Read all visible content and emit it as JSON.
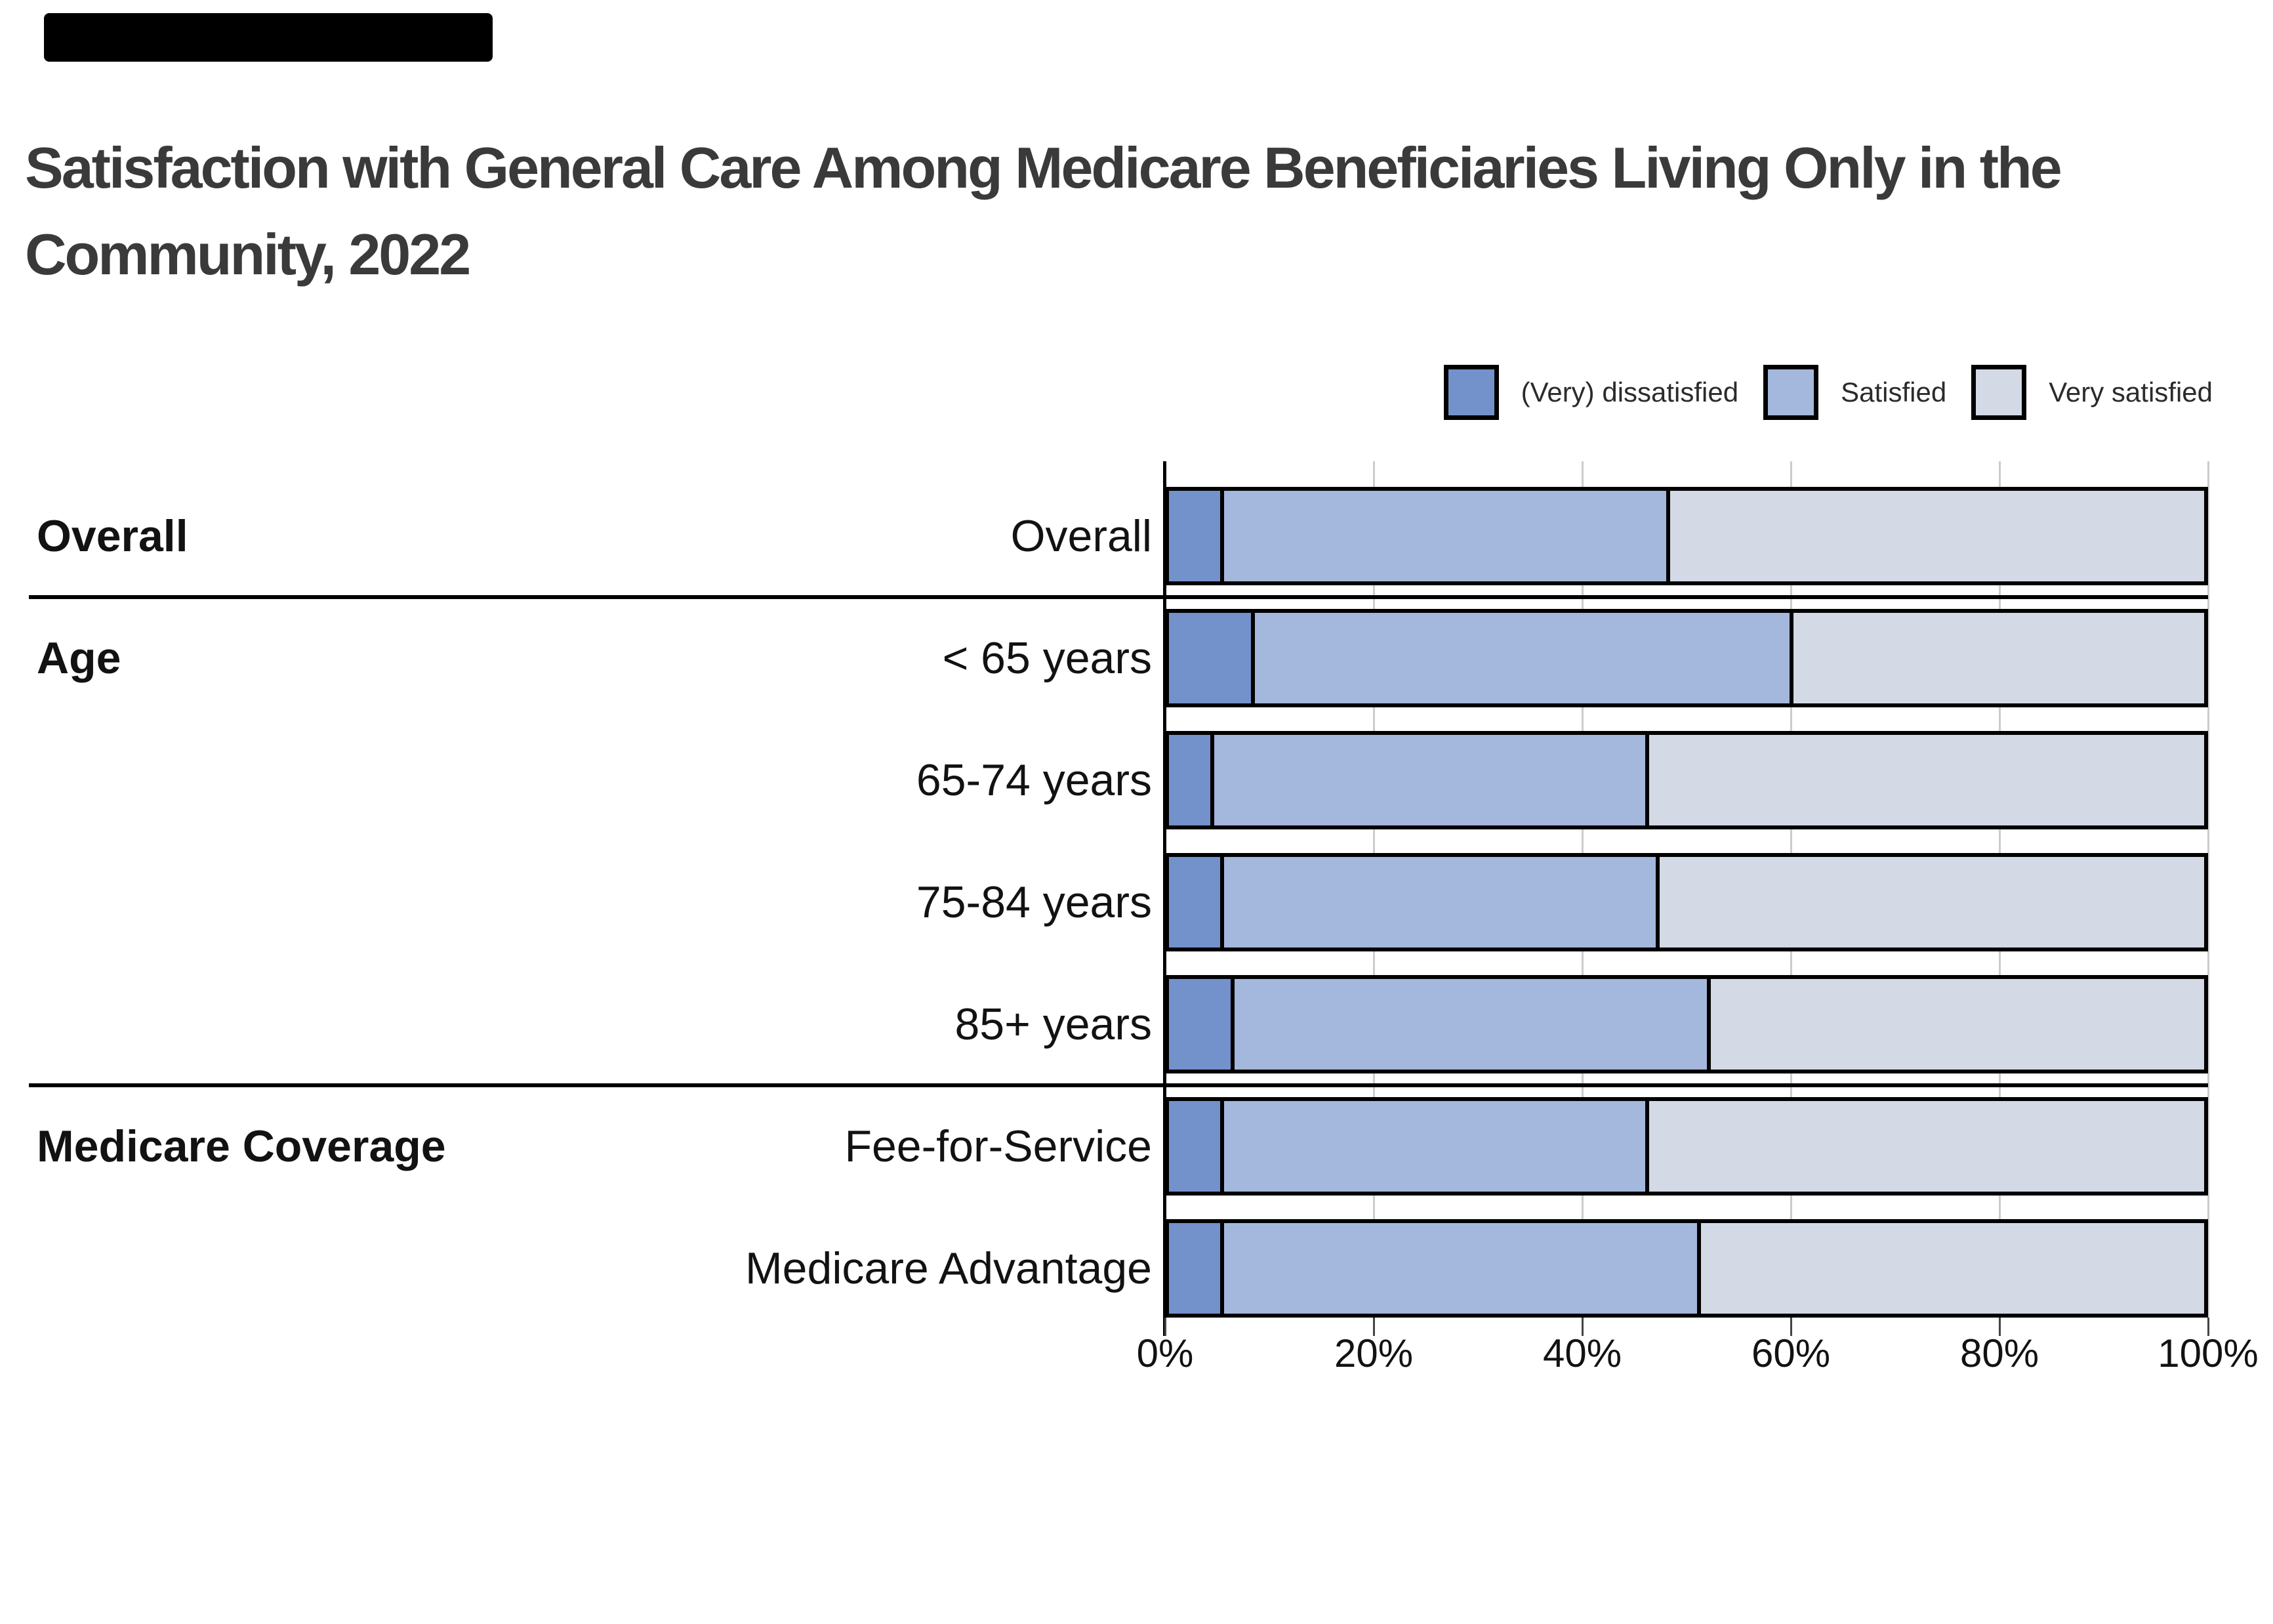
{
  "banner": {
    "color": "#000000"
  },
  "title_lines": [
    "Satisfaction with General Care Among Medicare Beneficiaries Living Only in the",
    "Community, 2022"
  ],
  "legend": {
    "items": [
      {
        "label": "(Very) dissatisfied",
        "color": "#7392CB"
      },
      {
        "label": "Satisfied",
        "color": "#A4B7DC"
      },
      {
        "label": "Very satisfied",
        "color": "#D3D9E5"
      }
    ]
  },
  "chart_data": {
    "type": "bar",
    "orientation": "horizontal",
    "stacked": true,
    "title": "Satisfaction with General Care Among Medicare Beneficiaries Living Only in the Community, 2022",
    "categories": [
      "Overall",
      "< 65 years",
      "65-74 years",
      "75-84 years",
      "85+ years",
      "Fee-for-Service",
      "Medicare Advantage"
    ],
    "row_groups": [
      {
        "label": "Overall",
        "first_row": 0
      },
      {
        "label": "Age",
        "first_row": 1
      },
      {
        "label": "Medicare Coverage",
        "first_row": 5
      }
    ],
    "separators_after_rows": [
      0,
      4
    ],
    "series": [
      {
        "name": "(Very) dissatisfied",
        "color": "#7392CB",
        "values": [
          5,
          8,
          4,
          5,
          6,
          5,
          5
        ]
      },
      {
        "name": "Satisfied",
        "color": "#A4B7DC",
        "values": [
          43,
          52,
          42,
          42,
          46,
          41,
          46
        ]
      },
      {
        "name": "Very satisfied",
        "color": "#D3D9E5",
        "values": [
          52,
          40,
          54,
          53,
          48,
          54,
          49
        ]
      }
    ],
    "x_axis": {
      "tick_labels": [
        "0%",
        "20%",
        "40%",
        "60%",
        "80%",
        "100%"
      ],
      "range": [
        0,
        100
      ],
      "grid": true,
      "legend_position": "top-right"
    }
  },
  "colors": {
    "bar_border": "#000000",
    "gridline": "#cccccc",
    "axis_line": "#000000",
    "text": "#121212",
    "title": "#3a3a3a"
  }
}
